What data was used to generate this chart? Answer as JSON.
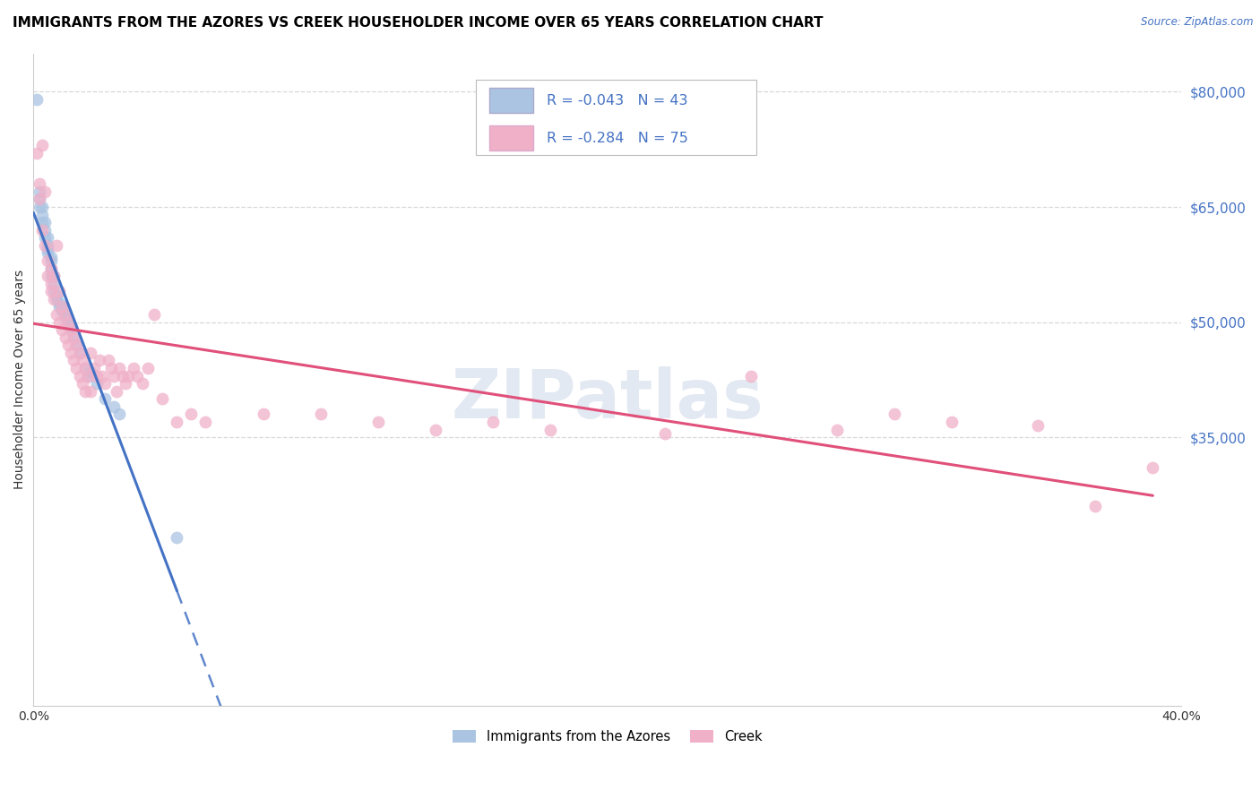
{
  "title": "IMMIGRANTS FROM THE AZORES VS CREEK HOUSEHOLDER INCOME OVER 65 YEARS CORRELATION CHART",
  "source": "Source: ZipAtlas.com",
  "ylabel": "Householder Income Over 65 years",
  "xlim": [
    0.0,
    0.4
  ],
  "ylim": [
    0,
    85000
  ],
  "xticks": [
    0.0,
    0.05,
    0.1,
    0.15,
    0.2,
    0.25,
    0.3,
    0.35,
    0.4
  ],
  "xtick_labels": [
    "0.0%",
    "",
    "",
    "",
    "",
    "",
    "",
    "",
    "40.0%"
  ],
  "ytick_labels_right": [
    "$80,000",
    "$65,000",
    "$50,000",
    "$35,000"
  ],
  "ytick_positions_right": [
    80000,
    65000,
    50000,
    35000
  ],
  "series_azores": {
    "label": "Immigrants from the Azores",
    "R": -0.043,
    "N": 43,
    "color_scatter": "#aac4e2",
    "color_line": "#4472c4",
    "x": [
      0.001,
      0.002,
      0.002,
      0.002,
      0.003,
      0.003,
      0.003,
      0.004,
      0.004,
      0.004,
      0.005,
      0.005,
      0.005,
      0.005,
      0.006,
      0.006,
      0.006,
      0.006,
      0.007,
      0.007,
      0.007,
      0.008,
      0.008,
      0.009,
      0.009,
      0.01,
      0.01,
      0.011,
      0.011,
      0.012,
      0.013,
      0.013,
      0.014,
      0.015,
      0.016,
      0.018,
      0.019,
      0.02,
      0.022,
      0.025,
      0.028,
      0.03,
      0.05
    ],
    "y": [
      79000,
      67000,
      66000,
      65000,
      65000,
      64000,
      63000,
      63000,
      62000,
      61000,
      61000,
      60000,
      59500,
      59000,
      58500,
      58000,
      57000,
      56000,
      56000,
      55000,
      54000,
      53500,
      53000,
      52500,
      52000,
      52000,
      51500,
      51000,
      50500,
      50000,
      49500,
      49000,
      48000,
      47000,
      46000,
      44000,
      43000,
      43500,
      42000,
      40000,
      39000,
      38000,
      22000
    ]
  },
  "series_creek": {
    "label": "Creek",
    "R": -0.284,
    "N": 75,
    "color_scatter": "#f0b0c8",
    "color_line": "#e0507a",
    "x": [
      0.001,
      0.002,
      0.002,
      0.003,
      0.003,
      0.004,
      0.004,
      0.005,
      0.005,
      0.006,
      0.006,
      0.006,
      0.007,
      0.007,
      0.008,
      0.008,
      0.009,
      0.009,
      0.01,
      0.01,
      0.011,
      0.011,
      0.012,
      0.012,
      0.013,
      0.013,
      0.014,
      0.014,
      0.015,
      0.015,
      0.016,
      0.016,
      0.017,
      0.017,
      0.018,
      0.018,
      0.019,
      0.02,
      0.02,
      0.021,
      0.022,
      0.023,
      0.024,
      0.025,
      0.026,
      0.027,
      0.028,
      0.029,
      0.03,
      0.031,
      0.032,
      0.033,
      0.035,
      0.036,
      0.038,
      0.04,
      0.042,
      0.045,
      0.05,
      0.055,
      0.06,
      0.08,
      0.1,
      0.12,
      0.14,
      0.16,
      0.18,
      0.22,
      0.25,
      0.28,
      0.3,
      0.32,
      0.35,
      0.37,
      0.39
    ],
    "y": [
      72000,
      68000,
      66000,
      73000,
      62000,
      67000,
      60000,
      58000,
      56000,
      57000,
      55000,
      54000,
      56000,
      53000,
      60000,
      51000,
      54000,
      50000,
      52000,
      49000,
      51000,
      48000,
      50000,
      47000,
      49000,
      46000,
      48000,
      45000,
      47000,
      44000,
      46000,
      43000,
      45000,
      42000,
      44000,
      41000,
      43000,
      46000,
      41000,
      44000,
      43000,
      45000,
      43000,
      42000,
      45000,
      44000,
      43000,
      41000,
      44000,
      43000,
      42000,
      43000,
      44000,
      43000,
      42000,
      44000,
      51000,
      40000,
      37000,
      38000,
      37000,
      38000,
      38000,
      37000,
      36000,
      37000,
      36000,
      35500,
      43000,
      36000,
      38000,
      37000,
      36500,
      26000,
      31000
    ]
  },
  "watermark": "ZIPatlas",
  "background_color": "#ffffff",
  "grid_color": "#d8d8d8",
  "title_fontsize": 11,
  "axis_label_fontsize": 10,
  "tick_fontsize": 10
}
